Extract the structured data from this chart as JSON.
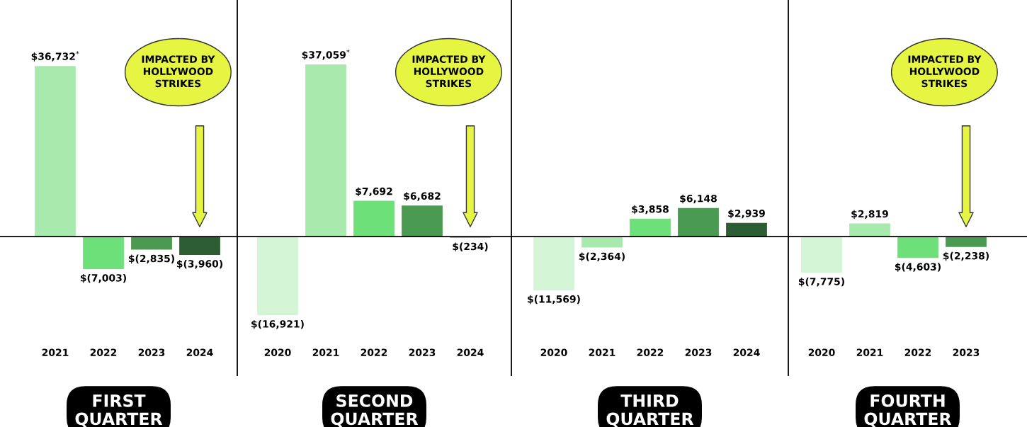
{
  "chart_data": [
    {
      "type": "bar",
      "xlabel": "FIRST QUARTER",
      "categories": [
        "2021",
        "2022",
        "2023",
        "2024"
      ],
      "values": [
        36732,
        -7003,
        -2835,
        -3960
      ],
      "colors": [
        "#a8eaae",
        "#6ee07a",
        "#4b9a52",
        "#2d5e33"
      ],
      "value_labels": [
        "$36,732$^{*}$",
        "$(7,003)",
        "$(2,835)",
        "$(3,960)"
      ],
      "tick_labels": "x",
      "annotations": [
        "IMPACTED BY HOLLYWOOD STRIKES"
      ]
    },
    {
      "type": "bar",
      "xlabel": "SECOND QUARTER",
      "categories": [
        "2020",
        "2021",
        "2022",
        "2023",
        "2024"
      ],
      "values": [
        -16921,
        37059,
        7692,
        6682,
        -234
      ],
      "colors": [
        "#d3f5d6",
        "#a8eaae",
        "#6ee07a",
        "#4b9a52",
        "#2d5e33"
      ],
      "value_labels": [
        "$(16,921)",
        "$37,059$^{*}$",
        "$7,692",
        "$6,682",
        "$(234)"
      ],
      "tick_labels": "x",
      "annotations": [
        "IMPACTED BY HOLLYWOOD STRIKES"
      ]
    },
    {
      "type": "bar",
      "xlabel": "THIRD QUARTER",
      "categories": [
        "2020",
        "2021",
        "2022",
        "2023",
        "2024"
      ],
      "values": [
        -11569,
        -2364,
        3858,
        6148,
        2939
      ],
      "colors": [
        "#d3f5d6",
        "#a8eaae",
        "#6ee07a",
        "#4b9a52",
        "#2d5e33"
      ],
      "value_labels": [
        "$(11,569)",
        "$(2,364)",
        "$3,858",
        "$6,148",
        "$2,939"
      ],
      "tick_labels": "x"
    },
    {
      "type": "bar",
      "xlabel": "FOURTH QUARTER",
      "categories": [
        "2020",
        "2021",
        "2022",
        "2023"
      ],
      "values": [
        -7775,
        2819,
        -4603,
        -2238
      ],
      "colors": [
        "#d3f5d6",
        "#a8eaae",
        "#6ee07a",
        "#4b9a52"
      ],
      "value_labels": [
        "$(7,775)",
        "$2,819",
        "$(4,603)",
        "$(2,238)"
      ],
      "tick_labels": "x",
      "annotations": [
        "IMPACTED BY HOLLYWOOD STRIKES"
      ]
    }
  ]
}
